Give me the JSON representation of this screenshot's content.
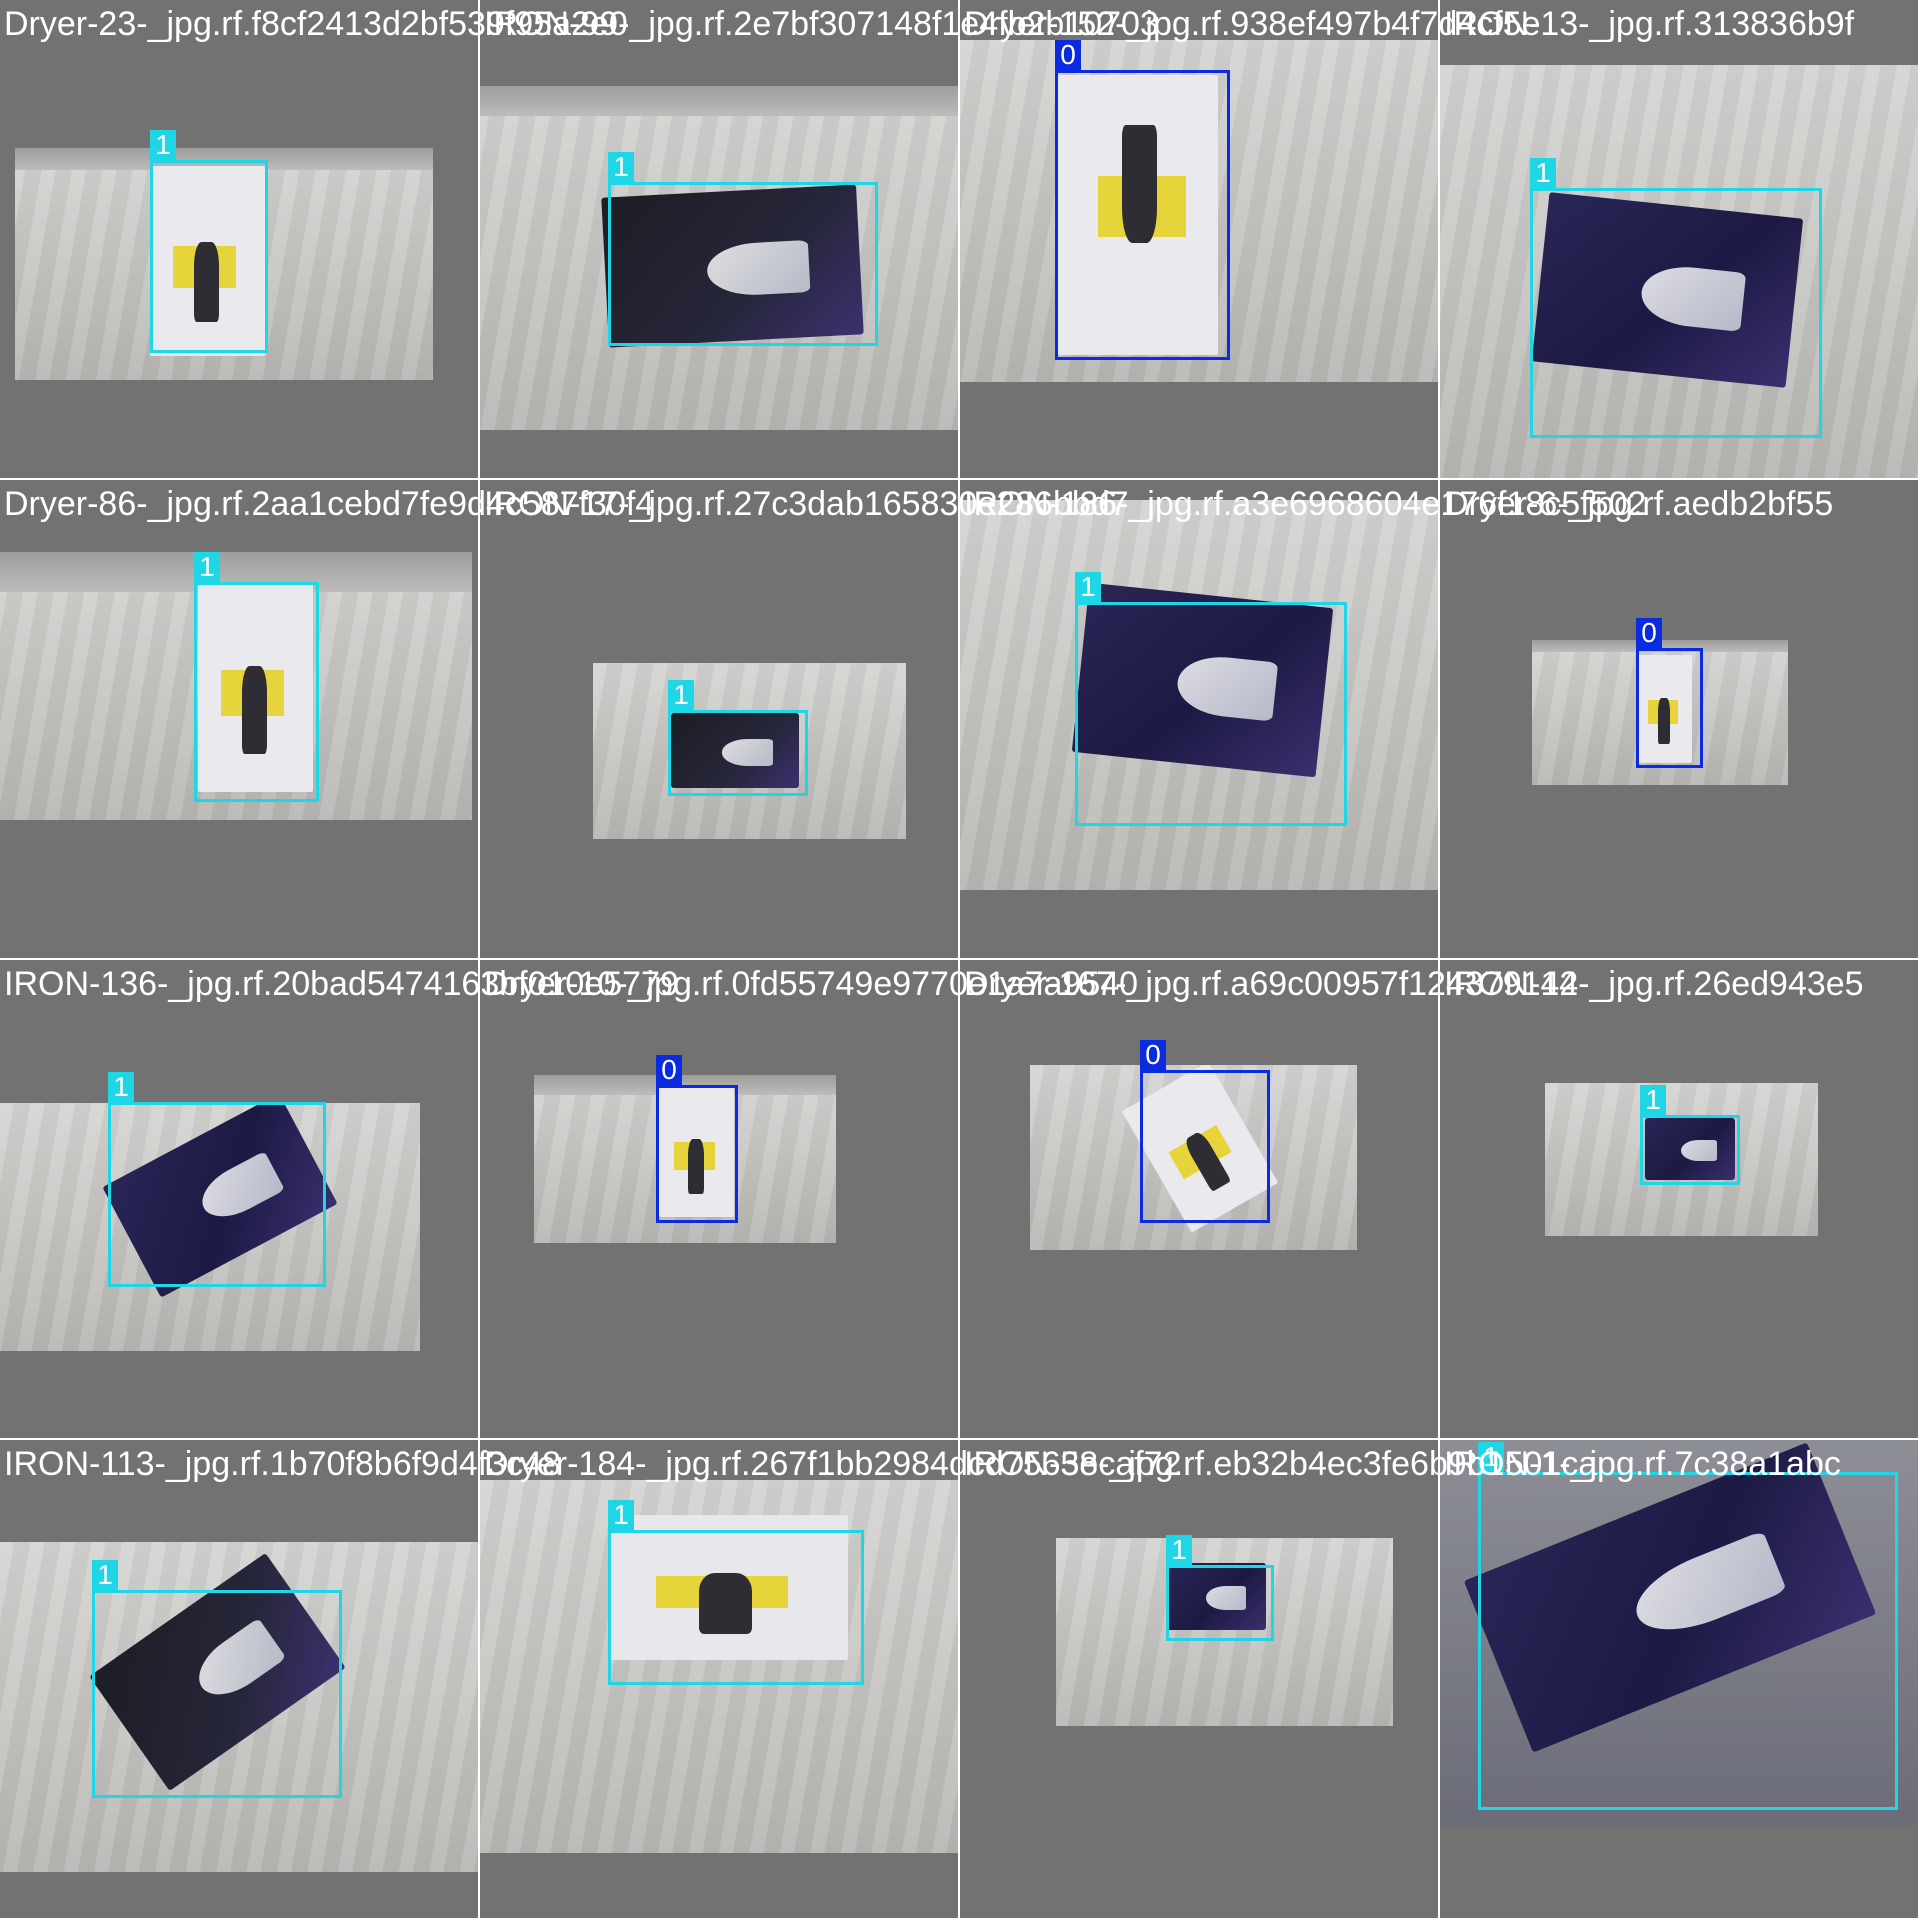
{
  "class_colors": {
    "0": "#0a2be0",
    "1": "#1fd6e6"
  },
  "tiles": [
    {
      "title": "Dryer-23-_jpg.rf.f8cf2413d2bf539f95a2e0",
      "label": "1",
      "object": "dryer-box"
    },
    {
      "title": "IRON-99-_jpg.rf.2e7bf307148f1e4fb2b10703",
      "label": "1",
      "object": "iron-box"
    },
    {
      "title": "Dryer-152-_jpg.rf.938ef497b4f7d4cf5e",
      "label": "0",
      "object": "dryer-box"
    },
    {
      "title": "IRON-13-_jpg.rf.313836b9f",
      "label": "1",
      "object": "iron-box"
    },
    {
      "title": "Dryer-86-_jpg.rf.2aa1cebd7fe9d4c587f30f4",
      "label": "1",
      "object": "dryer-box"
    },
    {
      "title": "IRON-17-_jpg.rf.27c3dab165830e286bbd7",
      "label": "1",
      "object": "iron-box"
    },
    {
      "title": "IRON-186-_jpg.rf.a3e6968604e176f18c5f502",
      "label": "1",
      "object": "iron-box"
    },
    {
      "title": "Dryer-6-_jpg.rf.aedb2bf55",
      "label": "0",
      "object": "dryer-box"
    },
    {
      "title": "IRON-136-_jpg.rf.20bad5474163bf010e5779",
      "label": "1",
      "object": "iron-box"
    },
    {
      "title": "Dryer-10-_jpg.rf.0fd55749e9770e1a7a9540",
      "label": "0",
      "object": "dryer-box"
    },
    {
      "title": "Dryer-167-_jpg.rf.a69c00957f124379142",
      "label": "0",
      "object": "dryer-box"
    },
    {
      "title": "IRON-14-_jpg.rf.26ed943e5",
      "label": "1",
      "object": "iron-box"
    },
    {
      "title": "IRON-113-_jpg.rf.1b70f8b6f9d4f3c48",
      "label": "1",
      "object": "iron-box"
    },
    {
      "title": "Dryer-184-_jpg.rf.267f1bb2984dcd7563ecaf72",
      "label": "1",
      "object": "dryer-box"
    },
    {
      "title": "IRON-58-_jpg.rf.eb32b4ec3fe6b9b1501ca",
      "label": "1",
      "object": "iron-box"
    },
    {
      "title": "IRON-1-_jpg.rf.7c38a1abc",
      "label": "1",
      "object": "iron-box"
    }
  ]
}
